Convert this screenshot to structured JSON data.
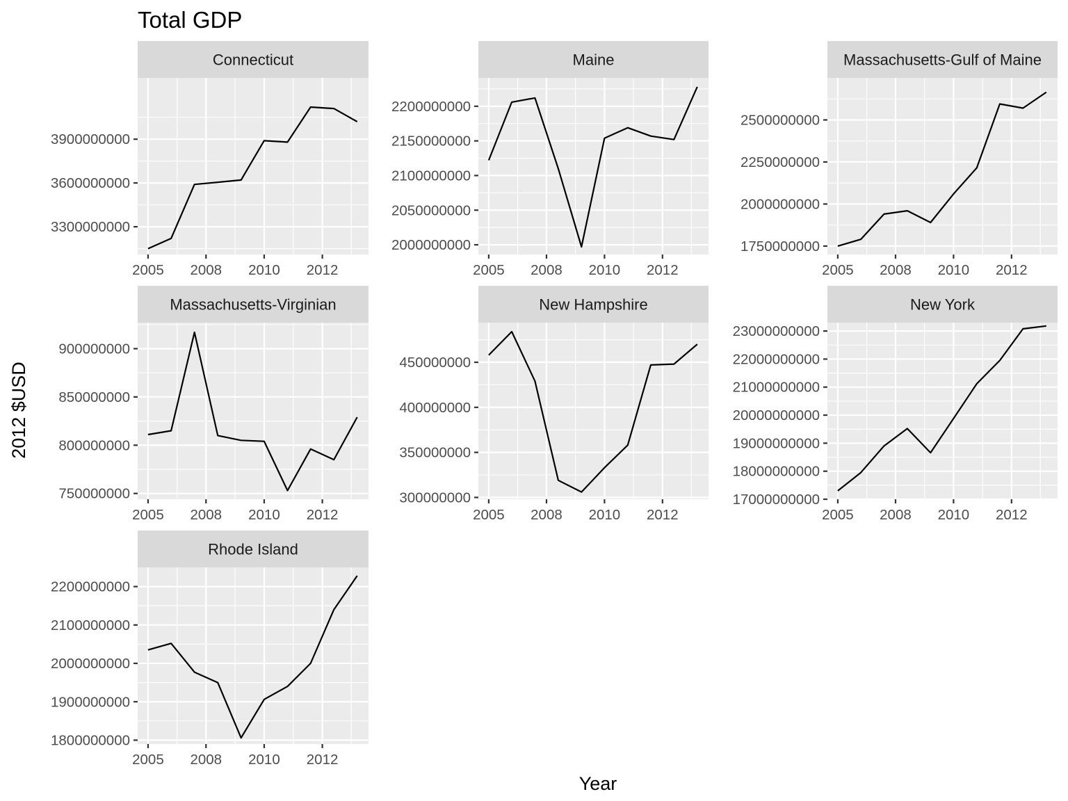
{
  "chart_data": {
    "type": "line",
    "title": "Total GDP",
    "xlabel": "Year",
    "ylabel": "2012 $USD",
    "x_tick_labels": [
      "2005",
      "2008",
      "2010",
      "2012"
    ],
    "facets": [
      {
        "name": "Connecticut",
        "ylim": [
          3110000000,
          4320000000
        ],
        "yticks": [
          3300000000,
          3600000000,
          3900000000
        ],
        "ytick_labels": [
          "3300000000",
          "3600000000",
          "3900000000"
        ],
        "values": [
          3150000000,
          3220000000,
          3590000000,
          3605000000,
          3620000000,
          3890000000,
          3880000000,
          4120000000,
          4110000000,
          4020000000
        ]
      },
      {
        "name": "Maine",
        "ylim": [
          1986000000,
          2241000000
        ],
        "yticks": [
          2000000000,
          2050000000,
          2100000000,
          2150000000,
          2200000000
        ],
        "ytick_labels": [
          "2000000000",
          "2050000000",
          "2100000000",
          "2150000000",
          "2200000000"
        ],
        "values": [
          2122000000,
          2206000000,
          2212000000,
          2110000000,
          1997000000,
          2154000000,
          2169000000,
          2157000000,
          2152000000,
          2228000000
        ]
      },
      {
        "name": "Massachusetts-Gulf of Maine",
        "ylim": [
          1700000000,
          2750000000
        ],
        "yticks": [
          1750000000,
          2000000000,
          2250000000,
          2500000000
        ],
        "ytick_labels": [
          "1750000000",
          "2000000000",
          "2250000000",
          "2500000000"
        ],
        "values": [
          1750000000,
          1790000000,
          1940000000,
          1960000000,
          1890000000,
          2060000000,
          2215000000,
          2595000000,
          2570000000,
          2665000000
        ]
      },
      {
        "name": "Massachusetts-Virginian",
        "ylim": [
          744000000,
          927000000
        ],
        "yticks": [
          750000000,
          800000000,
          850000000,
          900000000
        ],
        "ytick_labels": [
          "750000000",
          "800000000",
          "850000000",
          "900000000"
        ],
        "values": [
          811000000,
          815000000,
          917000000,
          810000000,
          805000000,
          804000000,
          753000000,
          796000000,
          785000000,
          829000000
        ]
      },
      {
        "name": "New Hampshire",
        "ylim": [
          298000000,
          494000000
        ],
        "yticks": [
          300000000,
          350000000,
          400000000,
          450000000
        ],
        "ytick_labels": [
          "300000000",
          "350000000",
          "400000000",
          "450000000"
        ],
        "values": [
          458000000,
          484000000,
          429000000,
          319000000,
          306000000,
          333000000,
          358000000,
          447000000,
          448000000,
          470000000
        ]
      },
      {
        "name": "New York",
        "ylim": [
          17000000000,
          23300000000
        ],
        "yticks": [
          17000000000,
          18000000000,
          19000000000,
          20000000000,
          21000000000,
          22000000000,
          23000000000
        ],
        "ytick_labels": [
          "17000000000",
          "18000000000",
          "19000000000",
          "20000000000",
          "21000000000",
          "22000000000",
          "23000000000"
        ],
        "values": [
          17300000000,
          17950000000,
          18900000000,
          19520000000,
          18660000000,
          19880000000,
          21120000000,
          21950000000,
          23080000000,
          23180000000
        ]
      },
      {
        "name": "Rhode Island",
        "ylim": [
          1790000000,
          2250000000
        ],
        "yticks": [
          1800000000,
          1900000000,
          2000000000,
          2100000000,
          2200000000
        ],
        "ytick_labels": [
          "1800000000",
          "1900000000",
          "2000000000",
          "2100000000",
          "2200000000"
        ],
        "values": [
          2035000000,
          2052000000,
          1977000000,
          1950000000,
          1806000000,
          1906000000,
          1940000000,
          2000000000,
          2140000000,
          2228000000
        ]
      }
    ]
  }
}
